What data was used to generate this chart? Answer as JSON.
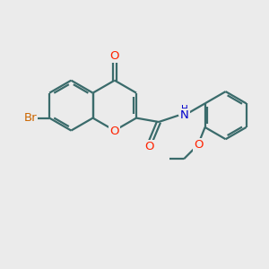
{
  "bg_color": "#ebebeb",
  "bond_color": "#3a6b6b",
  "bond_width": 1.6,
  "atom_colors": {
    "O": "#ff2200",
    "N": "#0000cc",
    "Br": "#cc6600"
  },
  "font_size": 8.5,
  "fig_size": [
    3.0,
    3.0
  ],
  "dpi": 100,
  "xlim": [
    0,
    10
  ],
  "ylim": [
    0,
    10
  ]
}
